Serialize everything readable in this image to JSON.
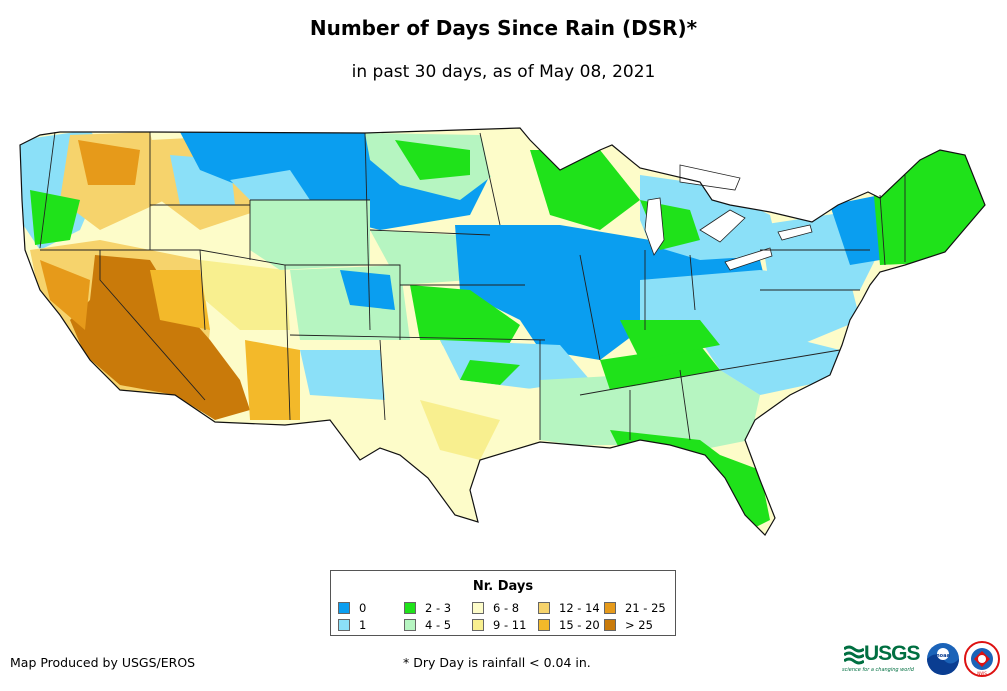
{
  "title": "Number of Days Since Rain (DSR)*",
  "subtitle": "in past 30 days, as of May 08, 2021",
  "legend": {
    "title": "Nr. Days",
    "items": [
      {
        "label": "0",
        "color": "#0a9ef0"
      },
      {
        "label": "1",
        "color": "#8be0f8"
      },
      {
        "label": "2 - 3",
        "color": "#1fe21a"
      },
      {
        "label": "4 - 5",
        "color": "#b6f5c1"
      },
      {
        "label": "6 - 8",
        "color": "#fdfcc9"
      },
      {
        "label": "9 - 11",
        "color": "#f8ef8f"
      },
      {
        "label": "12 - 14",
        "color": "#f6d36c"
      },
      {
        "label": "15 - 20",
        "color": "#f3b92a"
      },
      {
        "label": "21 - 25",
        "color": "#e69a1a"
      },
      {
        "label": "> 25",
        "color": "#c97a0a"
      }
    ]
  },
  "footer": {
    "credit": "Map Produced by USGS/EROS",
    "note": "* Dry Day is rainfall < 0.04 in."
  },
  "logos": {
    "usgs": "USGS",
    "usgs_tagline": "science for a changing world",
    "noaa": "noaa",
    "nws": "NWS"
  }
}
